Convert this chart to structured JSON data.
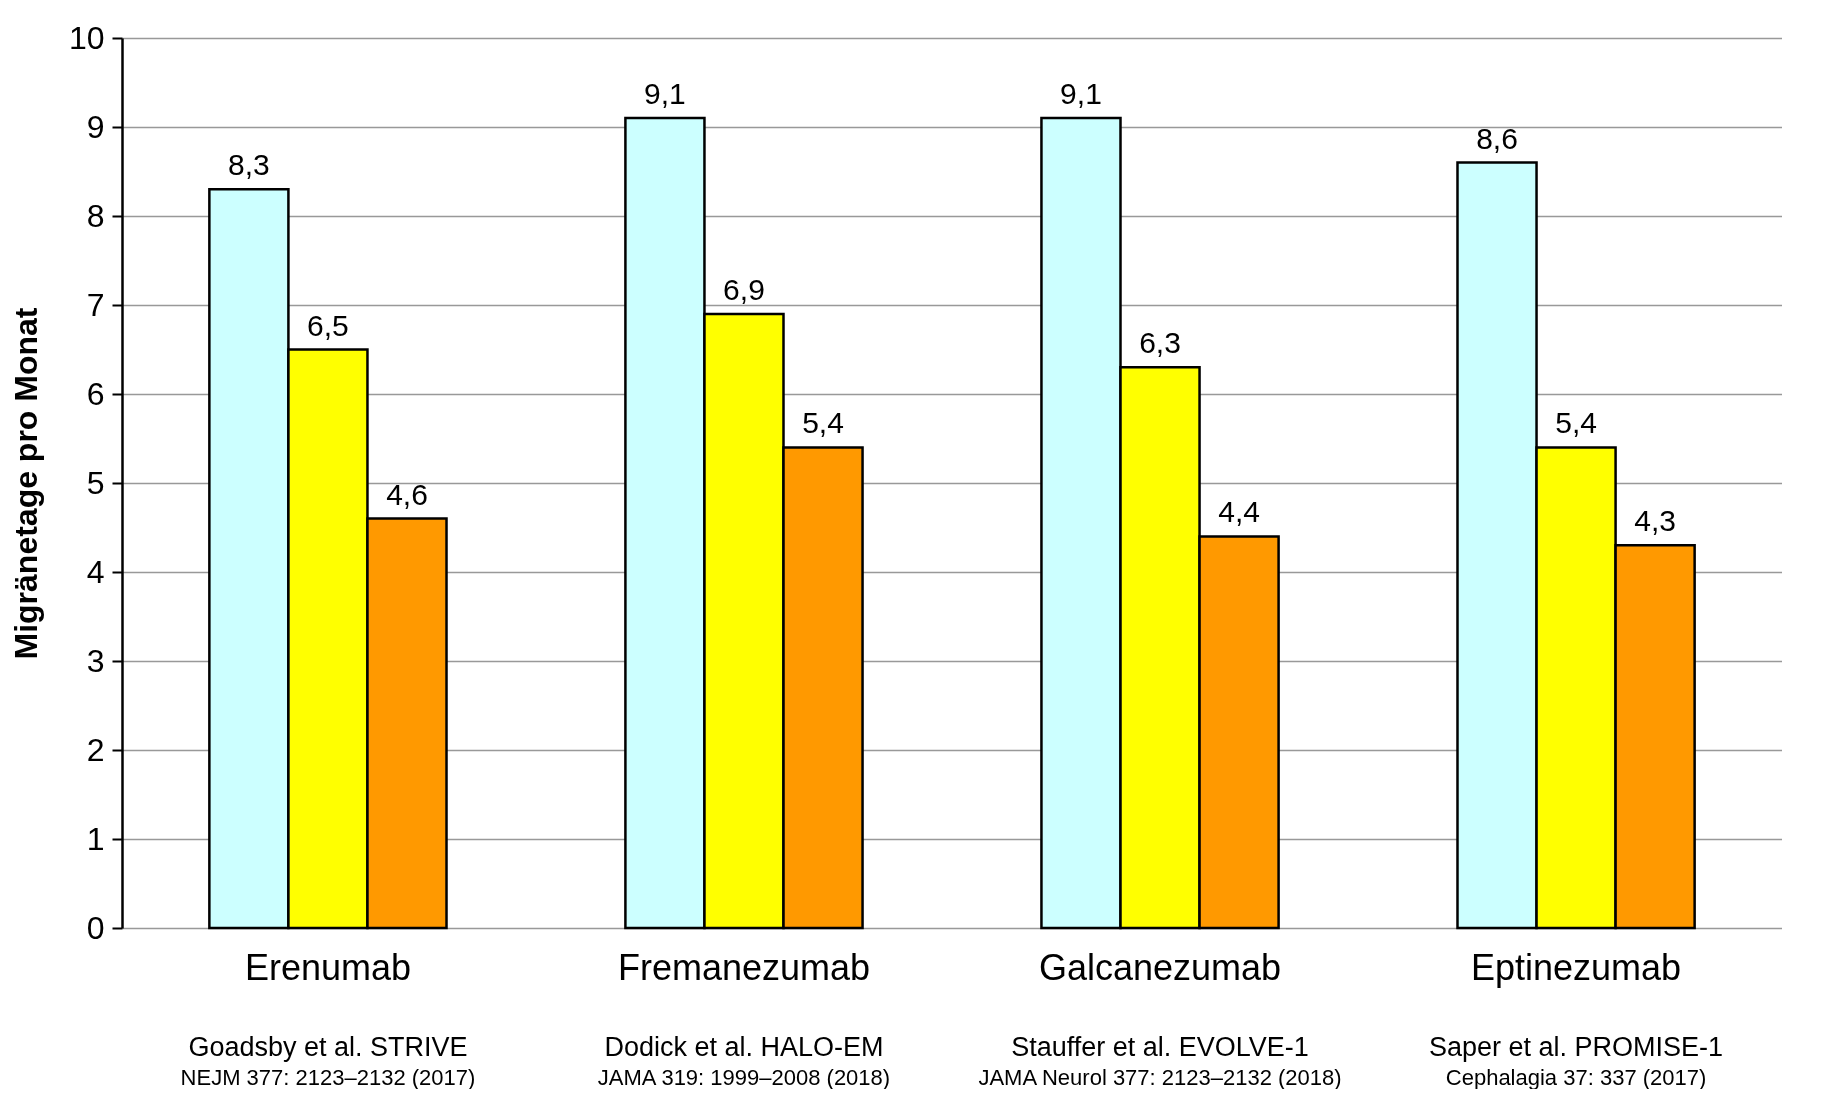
{
  "chart_data": {
    "type": "bar",
    "ylabel": "Migränetage pro Monat",
    "categories": [
      "Erenumab",
      "Fremanezumab",
      "Galcanezumab",
      "Eptinezumab"
    ],
    "series": [
      {
        "color": "#ccffff",
        "values": [
          8.3,
          9.1,
          9.1,
          8.6
        ],
        "value_labels": [
          "8,3",
          "9,1",
          "9,1",
          "8,6"
        ]
      },
      {
        "color": "#ffff00",
        "values": [
          6.5,
          6.9,
          6.3,
          5.4
        ],
        "value_labels": [
          "6,5",
          "6,9",
          "6,3",
          "5,4"
        ]
      },
      {
        "color": "#ff9900",
        "values": [
          4.6,
          5.4,
          4.4,
          4.3
        ],
        "value_labels": [
          "4,6",
          "5,4",
          "4,4",
          "4,3"
        ]
      }
    ],
    "ylim": [
      0,
      10
    ],
    "yticks": [
      0,
      1,
      2,
      3,
      4,
      5,
      6,
      7,
      8,
      9,
      10
    ],
    "grid": "y",
    "legend": false,
    "annotations": [
      "Goadsby et al. STRIVE",
      "NEJM 377: 2123–2132 (2017)",
      "Dodick et al. HALO-EM",
      "JAMA 319: 1999–2008 (2018)",
      "Stauffer et al. EVOLVE-1",
      "JAMA Neurol 377: 2123–2132 (2018)",
      "Saper et al. PROMISE-1",
      "Cephalagia 37: 337 (2017)"
    ]
  }
}
